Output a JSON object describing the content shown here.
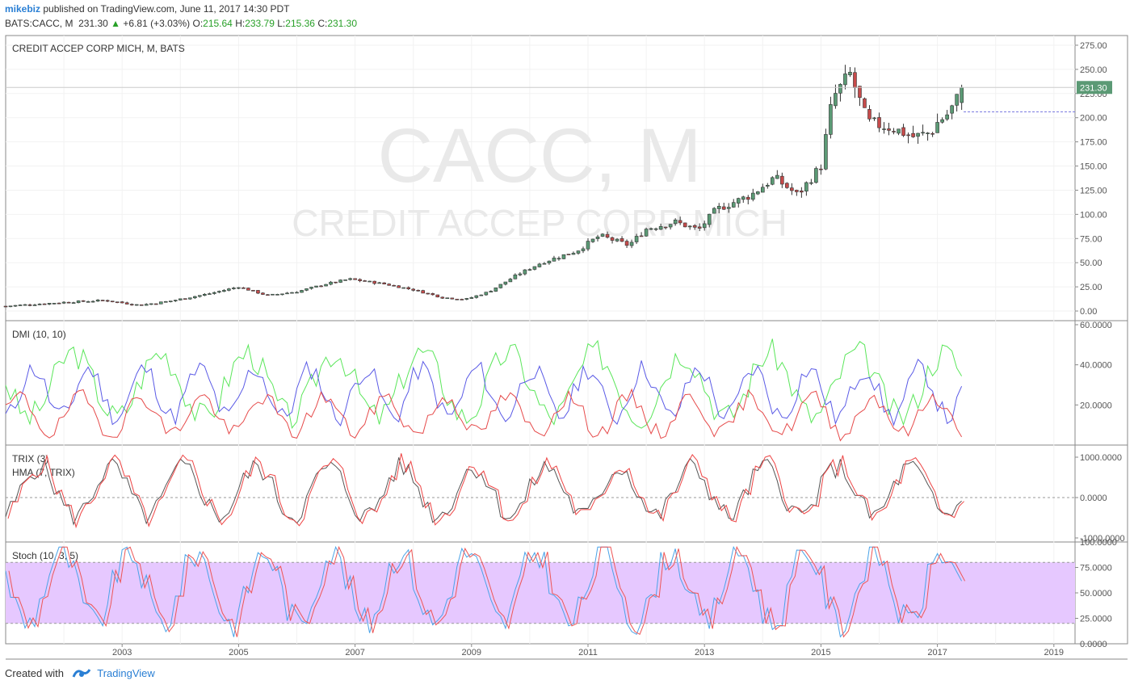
{
  "header": {
    "user": "mikebiz",
    "published": "published on TradingView.com, June 11, 2017 14:30 PDT",
    "symbol": "BATS:CACC, M",
    "last": "231.30",
    "change": "+6.81 (+3.03%)",
    "o_label": "O:",
    "o": "215.64",
    "h_label": "H:",
    "h": "233.79",
    "l_label": "L:",
    "l": "215.36",
    "c_label": "C:",
    "c": "231.30"
  },
  "watermark": {
    "big": "CACC, M",
    "small": "CREDIT ACCEP CORP MICH"
  },
  "footer": {
    "created": "Created with",
    "brand": "TradingView"
  },
  "colors": {
    "up": "#5b9a75",
    "down": "#c64b4b",
    "dmi_plus": "#5a5ae6",
    "dmi_minus": "#e64a4a",
    "adx": "#5ae65a",
    "trix": "#555555",
    "hma": "#ee4444",
    "stoch_k": "#4aa3e8",
    "stoch_d": "#ee5555",
    "band": "#e6c8ff",
    "last_price": "#5b9a75"
  },
  "chart_data": [
    {
      "type": "candlestick",
      "title": "CREDIT ACCEP CORP MICH, M, BATS",
      "ylim": [
        -10,
        285
      ],
      "y_ticks": [
        "275.00",
        "250.00",
        "225.00",
        "200.00",
        "175.00",
        "150.00",
        "125.00",
        "100.00",
        "75.00",
        "50.00",
        "25.00",
        "0.00"
      ],
      "x_ticks": [
        "2003",
        "2005",
        "2007",
        "2009",
        "2011",
        "2013",
        "2015",
        "2017",
        "2019"
      ],
      "last_price_label": "231.30",
      "approx_close_path": [
        [
          2001.0,
          5
        ],
        [
          2002.0,
          9
        ],
        [
          2002.7,
          11
        ],
        [
          2003.3,
          6
        ],
        [
          2003.8,
          10
        ],
        [
          2004.5,
          18
        ],
        [
          2005.0,
          25
        ],
        [
          2005.5,
          16
        ],
        [
          2006.0,
          20
        ],
        [
          2006.5,
          28
        ],
        [
          2006.9,
          33
        ],
        [
          2007.5,
          28
        ],
        [
          2008.0,
          22
        ],
        [
          2008.5,
          14
        ],
        [
          2008.9,
          12
        ],
        [
          2009.3,
          20
        ],
        [
          2009.8,
          38
        ],
        [
          2010.2,
          50
        ],
        [
          2010.8,
          62
        ],
        [
          2011.2,
          78
        ],
        [
          2011.7,
          68
        ],
        [
          2012.0,
          85
        ],
        [
          2012.5,
          92
        ],
        [
          2012.9,
          84
        ],
        [
          2013.2,
          105
        ],
        [
          2013.8,
          120
        ],
        [
          2014.2,
          138
        ],
        [
          2014.6,
          120
        ],
        [
          2015.0,
          150
        ],
        [
          2015.2,
          220
        ],
        [
          2015.5,
          245
        ],
        [
          2015.8,
          195
        ],
        [
          2016.2,
          190
        ],
        [
          2016.6,
          180
        ],
        [
          2016.9,
          185
        ],
        [
          2017.0,
          195
        ],
        [
          2017.2,
          205
        ],
        [
          2017.45,
          231.3
        ]
      ]
    },
    {
      "type": "line",
      "title": "DMI (10, 10)",
      "ylim": [
        0,
        62
      ],
      "y_ticks": [
        "60.0000",
        "40.0000",
        "20.0000"
      ],
      "series": []
    },
    {
      "type": "line",
      "title": "TRIX (3)",
      "subtitle": "HMA (7, TRIX)",
      "ylim": [
        -1100,
        1300
      ],
      "y_ticks": [
        "1000.0000",
        "0.0000",
        "-1000.0000"
      ],
      "series": []
    },
    {
      "type": "line",
      "title": "Stoch (10, 3, 5)",
      "ylim": [
        0,
        100
      ],
      "y_ticks": [
        "100.0000",
        "75.0000",
        "50.0000",
        "25.0000",
        "0.0000"
      ],
      "band": [
        20,
        80
      ],
      "series": []
    }
  ]
}
